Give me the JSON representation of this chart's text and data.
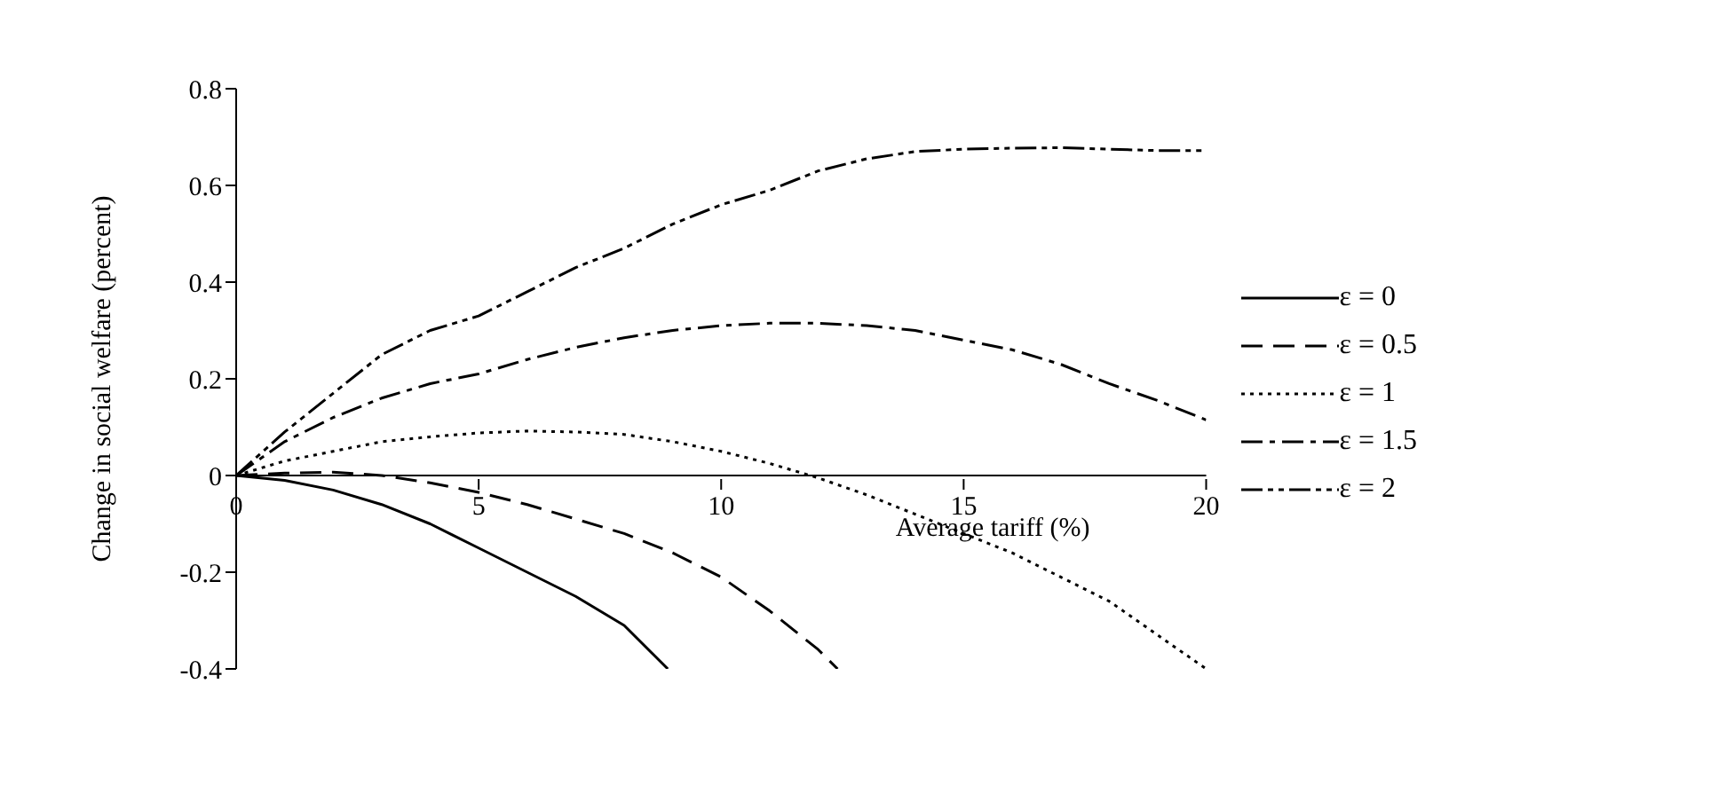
{
  "chart_data": {
    "type": "line",
    "xlabel": "Average tariff  (%)",
    "ylabel": "Change in social welfare (percent)",
    "xlim": [
      0,
      20
    ],
    "xticks": [
      0,
      5,
      10,
      15,
      20
    ],
    "ylim": [
      -0.4,
      0.8
    ],
    "yticks": [
      -0.4,
      -0.2,
      0,
      0.2,
      0.4,
      0.6,
      0.8
    ],
    "grid": false,
    "legend": "right",
    "marker": "none",
    "series": [
      {
        "name": "ε = 0",
        "color": "#000000",
        "line_style": "solid",
        "x": [
          0,
          1,
          2,
          3,
          4,
          5,
          6,
          7,
          8,
          8.9
        ],
        "values": [
          0,
          -0.01,
          -0.03,
          -0.06,
          -0.1,
          -0.15,
          -0.2,
          -0.25,
          -0.31,
          -0.4
        ]
      },
      {
        "name": "ε = 0.5",
        "color": "#000000",
        "line_style": "dashed",
        "x": [
          0,
          1,
          2,
          3,
          4,
          5,
          6,
          7,
          8,
          9,
          10,
          11,
          12,
          12.4
        ],
        "values": [
          0,
          0.005,
          0.007,
          0,
          -0.015,
          -0.035,
          -0.06,
          -0.09,
          -0.12,
          -0.16,
          -0.21,
          -0.28,
          -0.36,
          -0.4
        ]
      },
      {
        "name": "ε = 1",
        "color": "#000000",
        "line_style": "dotted",
        "x": [
          0,
          1,
          2,
          3,
          4,
          5,
          6,
          7,
          8,
          9,
          10,
          11,
          12,
          13,
          14,
          15,
          16,
          17,
          18,
          19,
          20
        ],
        "values": [
          0,
          0.03,
          0.05,
          0.07,
          0.08,
          0.088,
          0.092,
          0.09,
          0.085,
          0.07,
          0.05,
          0.025,
          -0.005,
          -0.04,
          -0.08,
          -0.12,
          -0.16,
          -0.21,
          -0.26,
          -0.33,
          -0.4
        ]
      },
      {
        "name": "ε = 1.5",
        "color": "#000000",
        "line_style": "dashdot",
        "x": [
          0,
          1,
          2,
          3,
          4,
          5,
          6,
          7,
          8,
          9,
          10,
          11,
          12,
          13,
          14,
          15,
          16,
          17,
          18,
          19,
          20
        ],
        "values": [
          0,
          0.07,
          0.12,
          0.16,
          0.19,
          0.21,
          0.24,
          0.265,
          0.285,
          0.3,
          0.31,
          0.315,
          0.315,
          0.31,
          0.3,
          0.28,
          0.26,
          0.23,
          0.19,
          0.155,
          0.115
        ]
      },
      {
        "name": "ε = 2",
        "color": "#000000",
        "line_style": "dashdotdot",
        "x": [
          0,
          1,
          2,
          3,
          4,
          5,
          6,
          7,
          8,
          9,
          10,
          11,
          12,
          13,
          14,
          15,
          16,
          17,
          18,
          19,
          20
        ],
        "values": [
          0,
          0.09,
          0.17,
          0.25,
          0.3,
          0.33,
          0.38,
          0.43,
          0.47,
          0.52,
          0.56,
          0.59,
          0.63,
          0.655,
          0.67,
          0.675,
          0.677,
          0.678,
          0.675,
          0.672,
          0.672
        ]
      }
    ]
  }
}
